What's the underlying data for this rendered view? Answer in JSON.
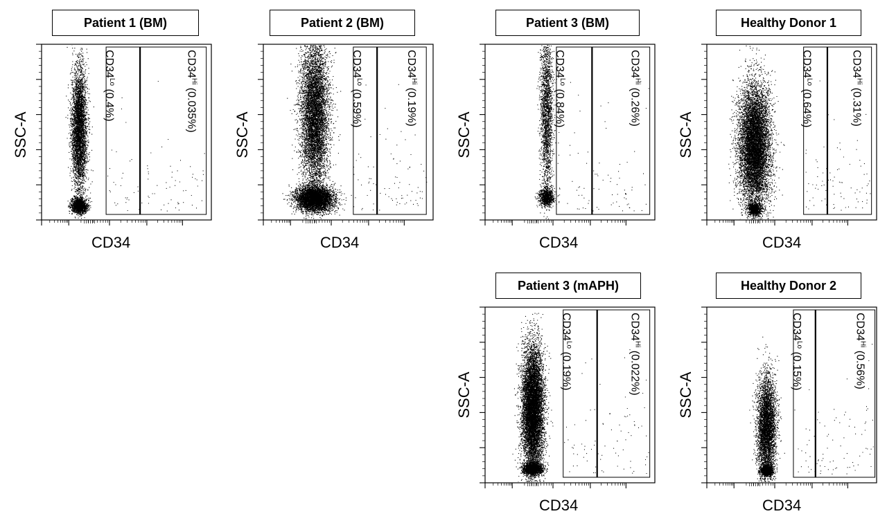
{
  "chart_data": [
    {
      "type": "scatter",
      "title": "Patient 1 (BM)",
      "xlabel": "CD34",
      "ylabel": "SSC-A",
      "gates": [
        {
          "name": "CD34",
          "sup": "Lo",
          "pct": "(0.4%)"
        },
        {
          "name": "CD34",
          "sup": "Hi",
          "pct": "(0.035%)"
        }
      ],
      "populations": [
        {
          "x_center": 0.22,
          "y_center": 0.52,
          "x_spread": 0.05,
          "y_spread": 0.5,
          "count": 4200
        },
        {
          "x_center": 0.22,
          "y_center": 0.08,
          "x_spread": 0.05,
          "y_spread": 0.06,
          "count": 1500
        }
      ],
      "gate_fractions": {
        "lo": [
          0.38,
          0.58
        ],
        "hi": [
          0.58,
          0.97
        ]
      },
      "grid": false,
      "legend": "none"
    },
    {
      "type": "scatter",
      "title": "Patient 2 (BM)",
      "xlabel": "CD34",
      "ylabel": "SSC-A",
      "gates": [
        {
          "name": "CD34",
          "sup": "Lo",
          "pct": "(0.59%)"
        },
        {
          "name": "CD34",
          "sup": "Hi",
          "pct": "(0.19%)"
        }
      ],
      "populations": [
        {
          "x_center": 0.3,
          "y_center": 0.6,
          "x_spread": 0.09,
          "y_spread": 0.6,
          "count": 7000
        },
        {
          "x_center": 0.3,
          "y_center": 0.12,
          "x_spread": 0.12,
          "y_spread": 0.1,
          "count": 5000
        }
      ],
      "gate_fractions": {
        "lo": [
          0.53,
          0.67
        ],
        "hi": [
          0.67,
          0.96
        ]
      },
      "grid": false,
      "legend": "none"
    },
    {
      "type": "scatter",
      "title": "Patient 3 (BM)",
      "xlabel": "CD34",
      "ylabel": "SSC-A",
      "gates": [
        {
          "name": "CD34",
          "sup": "Lo",
          "pct": "(0.84%)"
        },
        {
          "name": "CD34",
          "sup": "Hi",
          "pct": "(0.26%)"
        }
      ],
      "populations": [
        {
          "x_center": 0.36,
          "y_center": 0.62,
          "x_spread": 0.04,
          "y_spread": 0.7,
          "count": 2200
        },
        {
          "x_center": 0.36,
          "y_center": 0.13,
          "x_spread": 0.05,
          "y_spread": 0.07,
          "count": 900
        }
      ],
      "gate_fractions": {
        "lo": [
          0.42,
          0.63
        ],
        "hi": [
          0.63,
          0.97
        ]
      },
      "grid": false,
      "legend": "none"
    },
    {
      "type": "scatter",
      "title": "Healthy Donor 1",
      "xlabel": "CD34",
      "ylabel": "SSC-A",
      "gates": [
        {
          "name": "CD34",
          "sup": "Lo",
          "pct": "(0.64%)"
        },
        {
          "name": "CD34",
          "sup": "Hi",
          "pct": "(0.31%)"
        }
      ],
      "populations": [
        {
          "x_center": 0.28,
          "y_center": 0.42,
          "x_spread": 0.1,
          "y_spread": 0.5,
          "count": 9000
        },
        {
          "x_center": 0.28,
          "y_center": 0.06,
          "x_spread": 0.04,
          "y_spread": 0.05,
          "count": 900
        }
      ],
      "gate_fractions": {
        "lo": [
          0.57,
          0.71
        ],
        "hi": [
          0.71,
          0.97
        ]
      },
      "grid": false,
      "legend": "none"
    },
    {
      "type": "scatter",
      "title": "Patient 3 (mAPH)",
      "xlabel": "CD34",
      "ylabel": "SSC-A",
      "gates": [
        {
          "name": "CD34",
          "sup": "Lo",
          "pct": "(0.19%)"
        },
        {
          "name": "CD34",
          "sup": "Hi",
          "pct": "(0.022%)"
        }
      ],
      "populations": [
        {
          "x_center": 0.28,
          "y_center": 0.42,
          "x_spread": 0.07,
          "y_spread": 0.5,
          "count": 9000
        },
        {
          "x_center": 0.28,
          "y_center": 0.08,
          "x_spread": 0.06,
          "y_spread": 0.05,
          "count": 1800
        }
      ],
      "gate_fractions": {
        "lo": [
          0.46,
          0.66
        ],
        "hi": [
          0.66,
          0.97
        ]
      },
      "grid": false,
      "legend": "none"
    },
    {
      "type": "scatter",
      "title": "Healthy Donor 2",
      "xlabel": "CD34",
      "ylabel": "SSC-A",
      "gates": [
        {
          "name": "CD34",
          "sup": "Lo",
          "pct": "(0.15%)"
        },
        {
          "name": "CD34",
          "sup": "Hi",
          "pct": "(0.56%)"
        }
      ],
      "populations": [
        {
          "x_center": 0.35,
          "y_center": 0.32,
          "x_spread": 0.06,
          "y_spread": 0.4,
          "count": 4500
        },
        {
          "x_center": 0.35,
          "y_center": 0.07,
          "x_spread": 0.04,
          "y_spread": 0.05,
          "count": 1200
        }
      ],
      "gate_fractions": {
        "lo": [
          0.51,
          0.64
        ],
        "hi": [
          0.64,
          0.99
        ]
      },
      "grid": false,
      "legend": "none"
    }
  ]
}
